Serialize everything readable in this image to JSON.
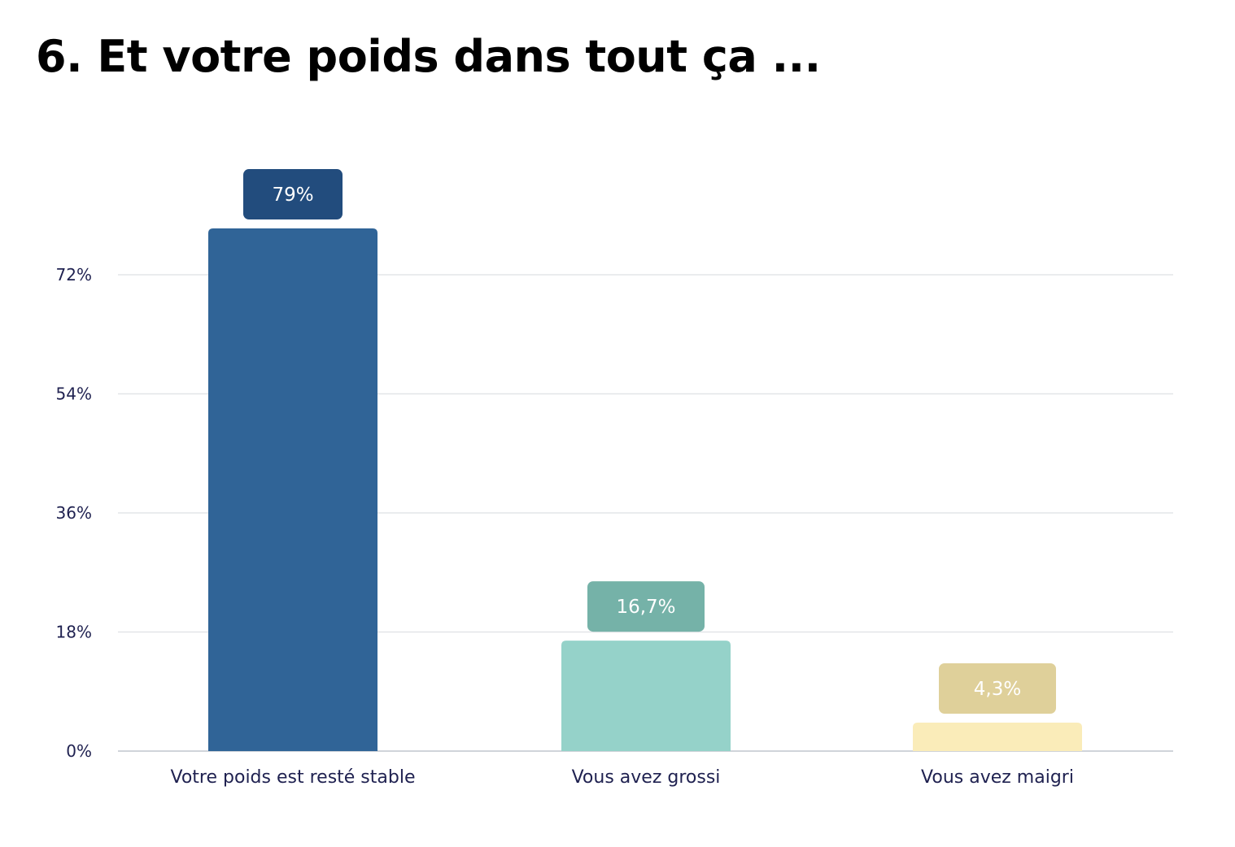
{
  "title": "6. Et votre poids dans tout ça ...",
  "chart_data": {
    "type": "bar",
    "categories": [
      "Votre poids est resté stable",
      "Vous avez grossi",
      "Vous avez maigri"
    ],
    "values": [
      79,
      16.7,
      4.3
    ],
    "value_labels": [
      "79%",
      "16,7%",
      "4,3%"
    ],
    "yticks": [
      0,
      18,
      36,
      54,
      72
    ],
    "ytick_labels": [
      "0%",
      "18%",
      "36%",
      "54%",
      "72%"
    ],
    "ylim": [
      0,
      90
    ],
    "grid": true,
    "legend": "none",
    "bar_colors": [
      "#306497",
      "#95d2c9",
      "#faecb9"
    ],
    "label_colors": [
      "#224c7d",
      "#75b2a8",
      "#dfd09a"
    ],
    "gridline_color": "#e3e5e8",
    "axis_text_color": "#1f2150"
  }
}
